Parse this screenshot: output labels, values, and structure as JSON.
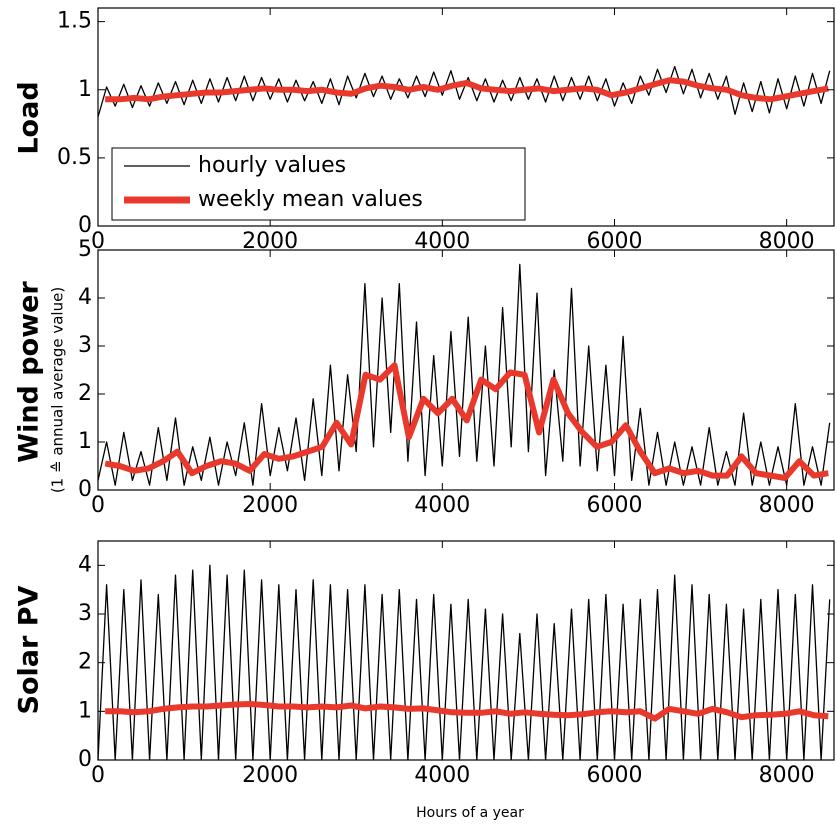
{
  "shared_ylabel": "(1 ≙ annual average value)",
  "chart_data": [
    {
      "type": "line",
      "ylabel": "Load",
      "xlim": [
        0,
        8550
      ],
      "xticks": [
        0,
        2000,
        4000,
        6000,
        8000
      ],
      "ylim": [
        0,
        1.6
      ],
      "yticks": [
        0,
        0.5,
        1,
        1.5
      ],
      "legend": "lower left",
      "series": [
        {
          "name": "hourly values",
          "color": "#000000",
          "x": [
            0,
            100,
            200,
            300,
            400,
            500,
            600,
            700,
            800,
            900,
            1000,
            1100,
            1200,
            1300,
            1400,
            1500,
            1600,
            1700,
            1800,
            1900,
            2000,
            2100,
            2200,
            2300,
            2400,
            2500,
            2600,
            2700,
            2800,
            2900,
            3000,
            3100,
            3200,
            3300,
            3400,
            3500,
            3600,
            3700,
            3800,
            3900,
            4000,
            4100,
            4200,
            4300,
            4400,
            4500,
            4600,
            4700,
            4800,
            4900,
            5000,
            5100,
            5200,
            5300,
            5400,
            5500,
            5600,
            5700,
            5800,
            5900,
            6000,
            6100,
            6200,
            6300,
            6400,
            6500,
            6600,
            6700,
            6800,
            6900,
            7000,
            7100,
            7200,
            7300,
            7400,
            7500,
            7600,
            7700,
            7800,
            7900,
            8000,
            8100,
            8200,
            8300,
            8400,
            8500
          ],
          "values": [
            0.8,
            1.02,
            0.88,
            1.04,
            0.87,
            1.03,
            0.88,
            1.05,
            0.9,
            1.06,
            0.89,
            1.07,
            0.9,
            1.08,
            0.91,
            1.09,
            0.92,
            1.1,
            0.92,
            1.09,
            0.93,
            1.08,
            0.91,
            1.07,
            0.92,
            1.06,
            0.9,
            1.08,
            0.89,
            1.1,
            0.94,
            1.12,
            0.95,
            1.1,
            0.93,
            1.08,
            0.94,
            1.1,
            0.95,
            1.13,
            0.96,
            1.14,
            0.93,
            1.09,
            0.92,
            1.08,
            0.91,
            1.07,
            0.92,
            1.09,
            0.93,
            1.08,
            0.91,
            1.1,
            0.92,
            1.09,
            0.93,
            1.1,
            0.92,
            1.08,
            0.88,
            1.05,
            0.9,
            1.1,
            0.96,
            1.15,
            0.98,
            1.17,
            0.97,
            1.15,
            0.94,
            1.12,
            0.93,
            1.1,
            0.82,
            1.05,
            0.84,
            1.06,
            0.83,
            1.08,
            0.86,
            1.1,
            0.88,
            1.12,
            0.9,
            1.14
          ]
        },
        {
          "name": "weekly mean values",
          "color": "#e8392c",
          "x": [
            84,
            252,
            420,
            588,
            756,
            924,
            1092,
            1260,
            1428,
            1596,
            1764,
            1932,
            2100,
            2268,
            2436,
            2604,
            2772,
            2940,
            3108,
            3276,
            3444,
            3612,
            3780,
            3948,
            4116,
            4284,
            4452,
            4620,
            4788,
            4956,
            5124,
            5292,
            5460,
            5628,
            5796,
            5964,
            6132,
            6300,
            6468,
            6636,
            6804,
            6972,
            7140,
            7308,
            7476,
            7644,
            7812,
            7980,
            8148,
            8316,
            8484
          ],
          "values": [
            0.93,
            0.93,
            0.94,
            0.93,
            0.95,
            0.96,
            0.97,
            0.98,
            0.98,
            0.99,
            1.0,
            1.01,
            1.0,
            1.0,
            0.99,
            1.0,
            0.98,
            0.97,
            1.01,
            1.03,
            1.02,
            1.0,
            1.02,
            1.0,
            1.03,
            1.05,
            1.01,
            1.0,
            0.99,
            1.0,
            1.01,
            0.99,
            1.0,
            1.01,
            1.0,
            0.96,
            0.98,
            1.01,
            1.04,
            1.07,
            1.06,
            1.03,
            1.01,
            1.0,
            0.96,
            0.94,
            0.93,
            0.95,
            0.97,
            0.99,
            1.01
          ]
        }
      ]
    },
    {
      "type": "line",
      "ylabel": "Wind power",
      "xlim": [
        0,
        8550
      ],
      "xticks": [
        0,
        2000,
        4000,
        6000,
        8000
      ],
      "ylim": [
        0,
        5
      ],
      "yticks": [
        0,
        1,
        2,
        3,
        4,
        5
      ],
      "series": [
        {
          "color": "#000000",
          "x": [
            0,
            100,
            200,
            300,
            400,
            500,
            600,
            700,
            800,
            900,
            1000,
            1100,
            1200,
            1300,
            1400,
            1500,
            1600,
            1700,
            1800,
            1900,
            2000,
            2100,
            2200,
            2300,
            2400,
            2500,
            2600,
            2700,
            2800,
            2900,
            3000,
            3100,
            3200,
            3300,
            3400,
            3500,
            3600,
            3700,
            3800,
            3900,
            4000,
            4100,
            4200,
            4300,
            4400,
            4500,
            4600,
            4700,
            4800,
            4900,
            5000,
            5100,
            5200,
            5300,
            5400,
            5500,
            5600,
            5700,
            5800,
            5900,
            6000,
            6100,
            6200,
            6300,
            6400,
            6500,
            6600,
            6700,
            6800,
            6900,
            7000,
            7100,
            7200,
            7300,
            7400,
            7500,
            7600,
            7700,
            7800,
            7900,
            8000,
            8100,
            8200,
            8300,
            8400,
            8500
          ],
          "values": [
            0.2,
            1.0,
            0.1,
            1.2,
            0.2,
            0.8,
            0.1,
            1.3,
            0.2,
            1.5,
            0.1,
            0.9,
            0.2,
            1.1,
            0.1,
            1.0,
            0.3,
            1.4,
            0.1,
            1.8,
            0.3,
            1.3,
            0.4,
            1.5,
            0.2,
            1.9,
            0.3,
            2.6,
            0.4,
            2.4,
            0.8,
            4.3,
            0.9,
            4.0,
            1.2,
            4.3,
            0.6,
            3.5,
            0.3,
            2.8,
            0.5,
            3.3,
            0.7,
            3.6,
            0.6,
            3.0,
            0.5,
            3.8,
            0.9,
            4.7,
            0.8,
            4.1,
            0.3,
            2.5,
            0.6,
            4.2,
            0.5,
            3.0,
            0.4,
            2.6,
            0.3,
            3.2,
            0.2,
            1.7,
            0.1,
            1.2,
            0.1,
            1.0,
            0.1,
            0.9,
            0.1,
            1.3,
            0.1,
            0.8,
            0.1,
            1.6,
            0.1,
            1.0,
            0.1,
            0.9,
            0.1,
            1.8,
            0.1,
            0.9,
            0.1,
            1.4
          ]
        },
        {
          "color": "#e8392c",
          "x": [
            84,
            252,
            420,
            588,
            756,
            924,
            1092,
            1260,
            1428,
            1596,
            1764,
            1932,
            2100,
            2268,
            2436,
            2604,
            2772,
            2940,
            3108,
            3276,
            3444,
            3612,
            3780,
            3948,
            4116,
            4284,
            4452,
            4620,
            4788,
            4956,
            5124,
            5292,
            5460,
            5628,
            5796,
            5964,
            6132,
            6300,
            6468,
            6636,
            6804,
            6972,
            7140,
            7308,
            7476,
            7644,
            7812,
            7980,
            8148,
            8316,
            8484
          ],
          "values": [
            0.55,
            0.5,
            0.4,
            0.45,
            0.6,
            0.8,
            0.35,
            0.5,
            0.6,
            0.55,
            0.4,
            0.75,
            0.65,
            0.7,
            0.8,
            0.9,
            1.4,
            0.95,
            2.4,
            2.3,
            2.6,
            1.1,
            1.9,
            1.6,
            1.9,
            1.45,
            2.3,
            2.1,
            2.45,
            2.4,
            1.2,
            2.3,
            1.6,
            1.2,
            0.9,
            1.0,
            1.35,
            0.8,
            0.35,
            0.45,
            0.35,
            0.4,
            0.3,
            0.3,
            0.7,
            0.35,
            0.3,
            0.25,
            0.6,
            0.3,
            0.35
          ]
        }
      ]
    },
    {
      "type": "line",
      "ylabel": "Solar PV",
      "xlabel": "Hours of a year",
      "xlim": [
        0,
        8550
      ],
      "xticks": [
        0,
        2000,
        4000,
        6000,
        8000
      ],
      "ylim": [
        0,
        4.5
      ],
      "yticks": [
        0,
        1,
        2,
        3,
        4
      ],
      "series": [
        {
          "color": "#000000",
          "x": [
            0,
            100,
            200,
            300,
            400,
            500,
            600,
            700,
            800,
            900,
            1000,
            1100,
            1200,
            1300,
            1400,
            1500,
            1600,
            1700,
            1800,
            1900,
            2000,
            2100,
            2200,
            2300,
            2400,
            2500,
            2600,
            2700,
            2800,
            2900,
            3000,
            3100,
            3200,
            3300,
            3400,
            3500,
            3600,
            3700,
            3800,
            3900,
            4000,
            4100,
            4200,
            4300,
            4400,
            4500,
            4600,
            4700,
            4800,
            4900,
            5000,
            5100,
            5200,
            5300,
            5400,
            5500,
            5600,
            5700,
            5800,
            5900,
            6000,
            6100,
            6200,
            6300,
            6400,
            6500,
            6600,
            6700,
            6800,
            6900,
            7000,
            7100,
            7200,
            7300,
            7400,
            7500,
            7600,
            7700,
            7800,
            7900,
            8000,
            8100,
            8200,
            8300,
            8400,
            8500
          ],
          "values": [
            0,
            3.6,
            0,
            3.5,
            0,
            3.7,
            0,
            3.4,
            0,
            3.8,
            0,
            3.9,
            0,
            4.0,
            0,
            3.8,
            0,
            3.9,
            0,
            3.7,
            0,
            3.6,
            0,
            3.5,
            0,
            3.7,
            0,
            3.6,
            0,
            3.5,
            0,
            3.6,
            0,
            3.4,
            0,
            3.5,
            0,
            3.3,
            0,
            3.4,
            0,
            3.2,
            0,
            3.3,
            0,
            3.1,
            0,
            3.0,
            0,
            2.6,
            0,
            3.0,
            0,
            2.8,
            0,
            3.1,
            0,
            3.3,
            0,
            3.4,
            0,
            3.2,
            0,
            3.3,
            0,
            3.5,
            0,
            3.8,
            0,
            3.6,
            0,
            3.4,
            0,
            3.2,
            0,
            3.1,
            0,
            3.3,
            0,
            3.5,
            0,
            3.4,
            0,
            3.6,
            0,
            3.3
          ]
        },
        {
          "color": "#e8392c",
          "x": [
            84,
            252,
            420,
            588,
            756,
            924,
            1092,
            1260,
            1428,
            1596,
            1764,
            1932,
            2100,
            2268,
            2436,
            2604,
            2772,
            2940,
            3108,
            3276,
            3444,
            3612,
            3780,
            3948,
            4116,
            4284,
            4452,
            4620,
            4788,
            4956,
            5124,
            5292,
            5460,
            5628,
            5796,
            5964,
            6132,
            6300,
            6468,
            6636,
            6804,
            6972,
            7140,
            7308,
            7476,
            7644,
            7812,
            7980,
            8148,
            8316,
            8484
          ],
          "values": [
            1.0,
            1.0,
            0.98,
            1.0,
            1.05,
            1.08,
            1.1,
            1.1,
            1.12,
            1.14,
            1.15,
            1.13,
            1.1,
            1.1,
            1.08,
            1.1,
            1.08,
            1.12,
            1.06,
            1.1,
            1.08,
            1.05,
            1.06,
            1.02,
            0.98,
            0.97,
            0.97,
            1.0,
            0.95,
            0.98,
            0.95,
            0.93,
            0.92,
            0.94,
            0.98,
            1.0,
            0.98,
            1.0,
            0.85,
            1.05,
            1.0,
            0.95,
            1.05,
            0.98,
            0.88,
            0.92,
            0.93,
            0.95,
            1.0,
            0.92,
            0.9
          ]
        }
      ]
    }
  ]
}
